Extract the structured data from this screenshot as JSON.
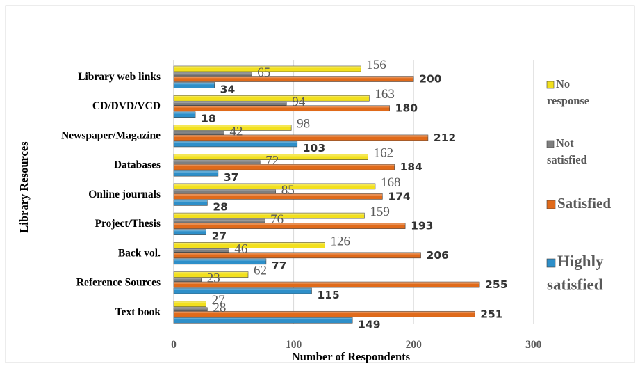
{
  "chart_data": {
    "type": "bar",
    "orientation": "horizontal",
    "xlabel": "Number of Respondents",
    "ylabel": "Library Resources",
    "xlim": [
      0,
      300
    ],
    "xticks": [
      0,
      100,
      200,
      300
    ],
    "grid": true,
    "legend_position": "right",
    "categories": [
      "Text book",
      "Reference Sources",
      "Back vol.",
      "Project/Thesis",
      "Online journals",
      "Databases",
      "Newspaper/Magazine",
      "CD/DVD/VCD",
      "Library web links"
    ],
    "series": [
      {
        "name": "Highly satisfied",
        "color": "#2E8FC9",
        "values": [
          149,
          115,
          77,
          27,
          28,
          37,
          103,
          18,
          34
        ]
      },
      {
        "name": "Satisfied",
        "color": "#E06A1A",
        "values": [
          251,
          255,
          206,
          193,
          174,
          184,
          212,
          180,
          200
        ]
      },
      {
        "name": "Not satisfied",
        "color": "#7F7F7F",
        "values": [
          28,
          23,
          46,
          76,
          85,
          72,
          42,
          94,
          65
        ]
      },
      {
        "name": "No response",
        "color": "#F2E01E",
        "values": [
          27,
          62,
          126,
          159,
          168,
          162,
          98,
          163,
          156
        ]
      }
    ]
  }
}
